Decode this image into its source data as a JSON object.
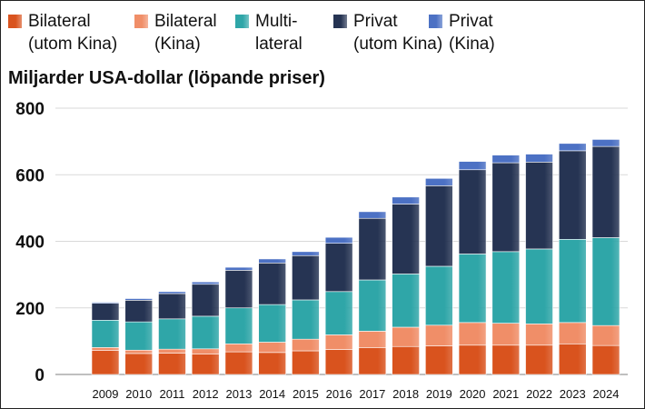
{
  "chart_data": {
    "type": "bar",
    "stacked": true,
    "title": "",
    "ylabel": "Miljarder USA-dollar (löpande priser)",
    "xlabel": "",
    "ylim": [
      0,
      800
    ],
    "yticks": [
      0,
      200,
      400,
      600,
      800
    ],
    "grid": true,
    "legend_position": "top",
    "categories": [
      "2009",
      "2010",
      "2011",
      "2012",
      "2013",
      "2014",
      "2015",
      "2016",
      "2017",
      "2018",
      "2019",
      "2020",
      "2021",
      "2022",
      "2023",
      "2024"
    ],
    "series": [
      {
        "name": "Bilateral (utom Kina)",
        "legend_lines": [
          "Bilateral",
          "(utom Kina)"
        ],
        "color": "#d9531e",
        "values": [
          72,
          63,
          64,
          61,
          68,
          66,
          71,
          75,
          80,
          84,
          86,
          88,
          88,
          88,
          92,
          87
        ]
      },
      {
        "name": "Bilateral (Kina)",
        "legend_lines": [
          "Bilateral",
          "(Kina)"
        ],
        "color": "#f08e68",
        "values": [
          9,
          10,
          12,
          16,
          24,
          31,
          35,
          44,
          50,
          58,
          62,
          68,
          66,
          64,
          64,
          60
        ]
      },
      {
        "name": "Multilateral",
        "legend_lines": [
          "Multi-",
          "lateral"
        ],
        "color": "#2fa6a8",
        "values": [
          82,
          85,
          91,
          98,
          108,
          113,
          118,
          130,
          154,
          160,
          177,
          206,
          215,
          225,
          250,
          264
        ]
      },
      {
        "name": "Privat (utom Kina)",
        "legend_lines": [
          "Privat",
          "(utom Kina)"
        ],
        "color": "#263453",
        "values": [
          51,
          65,
          76,
          96,
          113,
          125,
          133,
          145,
          185,
          210,
          242,
          253,
          267,
          261,
          266,
          274
        ]
      },
      {
        "name": "Privat (Kina)",
        "legend_lines": [
          "Privat",
          "(Kina)"
        ],
        "color": "#4c71c4",
        "values": [
          3,
          5,
          6,
          7,
          9,
          12,
          12,
          18,
          20,
          21,
          22,
          25,
          23,
          24,
          22,
          21
        ]
      }
    ]
  }
}
